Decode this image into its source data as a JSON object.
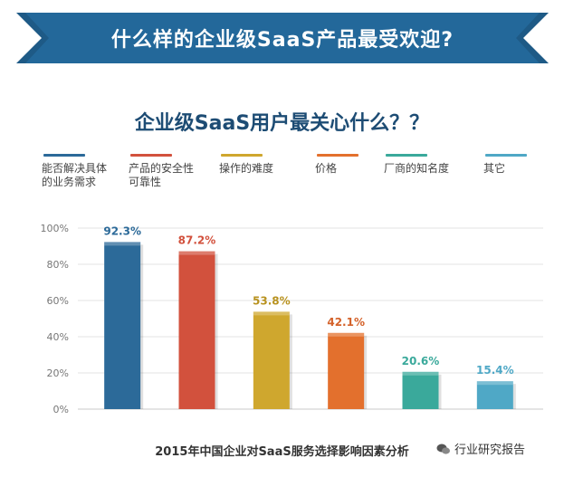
{
  "banner": {
    "title": "什么样的企业级SaaS产品最受欢迎?"
  },
  "subtitle": "企业级SaaS用户最关心什么？？",
  "legend": [
    {
      "label": "能否解决具体\n的业务需求",
      "color": "#2c6a99"
    },
    {
      "label": "产品的安全性\n可靠性",
      "color": "#d2513d"
    },
    {
      "label": "操作的难度",
      "color": "#cfa72e"
    },
    {
      "label": "价格",
      "color": "#e3702d"
    },
    {
      "label": "厂商的知名度",
      "color": "#3aa99b"
    },
    {
      "label": "其它",
      "color": "#4fa8c6"
    }
  ],
  "footer": "2015年中国企业对SaaS服务选择影响因素分析",
  "wechat": {
    "label": "行业研究报告",
    "icon": "wechat-icon"
  },
  "chart_data": {
    "type": "bar",
    "categories": [
      "能否解决具体的业务需求",
      "产品的安全性可靠性",
      "操作的难度",
      "价格",
      "厂商的知名度",
      "其它"
    ],
    "values": [
      92.3,
      87.2,
      53.8,
      42.1,
      20.6,
      15.4
    ],
    "value_labels": [
      "92.3%",
      "87.2%",
      "53.8%",
      "42.1%",
      "20.6%",
      "15.4%"
    ],
    "colors": [
      "#2c6a99",
      "#d2513d",
      "#cfa72e",
      "#e3702d",
      "#3aa99b",
      "#4fa8c6"
    ],
    "label_colors": [
      "#2c6a99",
      "#d2513d",
      "#b8921f",
      "#d4622a",
      "#3aa99b",
      "#4fa8c6"
    ],
    "yticks": [
      "0%",
      "20%",
      "40%",
      "60%",
      "80%",
      "100%"
    ],
    "ylim": [
      0,
      100
    ],
    "grid": true
  }
}
